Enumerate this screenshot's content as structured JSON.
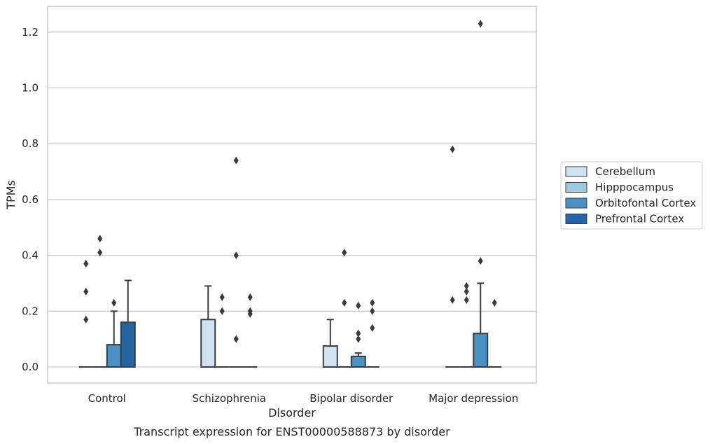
{
  "caption": "Transcript expression for ENST00000588873 by disorder",
  "chart_data": {
    "type": "box",
    "xlabel": "Disorder",
    "ylabel": "TPMs",
    "ylim": [
      -0.06,
      1.29
    ],
    "yticks": [
      "0.0",
      "0.2",
      "0.4",
      "0.6",
      "0.8",
      "1.0",
      "1.2"
    ],
    "grid": "horizontal",
    "legend_position": "right",
    "categories": [
      "Control",
      "Schizophrenia",
      "Bipolar disorder",
      "Major depression"
    ],
    "series": [
      {
        "name": "Cerebellum",
        "color": "#d0e1f2",
        "boxes": [
          {
            "q1": 0,
            "median": 0,
            "q3": 0,
            "whisker_low": 0,
            "whisker_high": 0,
            "outliers": [
              0.17,
              0.27,
              0.37
            ]
          },
          {
            "q1": 0,
            "median": 0,
            "q3": 0.17,
            "whisker_low": 0,
            "whisker_high": 0.29,
            "outliers": []
          },
          {
            "q1": 0,
            "median": 0,
            "q3": 0.075,
            "whisker_low": 0,
            "whisker_high": 0.17,
            "outliers": []
          },
          {
            "q1": 0,
            "median": 0,
            "q3": 0,
            "whisker_low": 0,
            "whisker_high": 0,
            "outliers": [
              0.24,
              0.78
            ]
          }
        ]
      },
      {
        "name": "Hipppocampus",
        "color": "#9ecae1",
        "boxes": [
          {
            "q1": 0,
            "median": 0,
            "q3": 0,
            "whisker_low": 0,
            "whisker_high": 0,
            "outliers": [
              0.41,
              0.46
            ]
          },
          {
            "q1": 0,
            "median": 0,
            "q3": 0,
            "whisker_low": 0,
            "whisker_high": 0,
            "outliers": [
              0.2,
              0.25
            ]
          },
          {
            "q1": 0,
            "median": 0,
            "q3": 0,
            "whisker_low": 0,
            "whisker_high": 0,
            "outliers": [
              0.23,
              0.41
            ]
          },
          {
            "q1": 0,
            "median": 0,
            "q3": 0,
            "whisker_low": 0,
            "whisker_high": 0,
            "outliers": [
              0.24,
              0.27,
              0.29
            ]
          }
        ]
      },
      {
        "name": "Orbitofontal Cortex",
        "color": "#4a90c2",
        "boxes": [
          {
            "q1": 0,
            "median": 0,
            "q3": 0.08,
            "whisker_low": 0,
            "whisker_high": 0.2,
            "outliers": [
              0.23
            ]
          },
          {
            "q1": 0,
            "median": 0,
            "q3": 0,
            "whisker_low": 0,
            "whisker_high": 0,
            "outliers": [
              0.1,
              0.4,
              0.74
            ]
          },
          {
            "q1": 0,
            "median": 0,
            "q3": 0.038,
            "whisker_low": 0,
            "whisker_high": 0.05,
            "outliers": [
              0.1,
              0.12,
              0.22
            ]
          },
          {
            "q1": 0,
            "median": 0,
            "q3": 0.12,
            "whisker_low": 0,
            "whisker_high": 0.3,
            "outliers": [
              0.38,
              1.23
            ]
          }
        ]
      },
      {
        "name": "Prefrontal Cortex",
        "color": "#2565a6",
        "boxes": [
          {
            "q1": 0,
            "median": 0,
            "q3": 0.16,
            "whisker_low": 0,
            "whisker_high": 0.31,
            "outliers": []
          },
          {
            "q1": 0,
            "median": 0,
            "q3": 0,
            "whisker_low": 0,
            "whisker_high": 0,
            "outliers": [
              0.19,
              0.2,
              0.25
            ]
          },
          {
            "q1": 0,
            "median": 0,
            "q3": 0,
            "whisker_low": 0,
            "whisker_high": 0,
            "outliers": [
              0.14,
              0.2,
              0.23
            ]
          },
          {
            "q1": 0,
            "median": 0,
            "q3": 0,
            "whisker_low": 0,
            "whisker_high": 0,
            "outliers": [
              0.23
            ]
          }
        ]
      }
    ]
  }
}
